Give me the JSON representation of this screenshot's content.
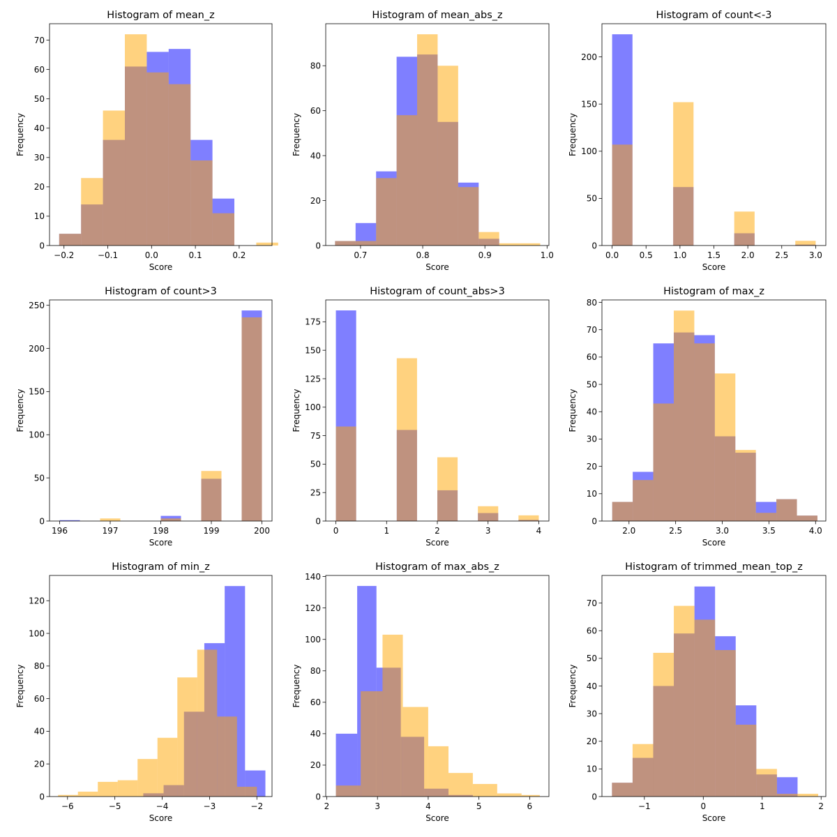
{
  "colors": {
    "blue": "#0000ff",
    "orange": "#ffa500",
    "axis": "#000000"
  },
  "chart_data": [
    {
      "type": "bar",
      "title": "Histogram of mean_z",
      "xlabel": "Score",
      "ylabel": "Frequency",
      "xlim": [
        -0.233,
        0.275
      ],
      "ylim": [
        0,
        75.6
      ],
      "xticks": [
        -0.2,
        -0.1,
        0.0,
        0.1,
        0.2
      ],
      "xticklabels": [
        "−0.2",
        "−0.1",
        "0.0",
        "0.1",
        "0.2"
      ],
      "yticks": [
        0,
        10,
        20,
        30,
        40,
        50,
        60,
        70
      ],
      "yticklabels": [
        "0",
        "10",
        "20",
        "30",
        "40",
        "50",
        "60",
        "70"
      ],
      "series": [
        {
          "name": "blue",
          "color": "#0000ff",
          "bins": [
            [
              -0.211,
              -0.161,
              4
            ],
            [
              -0.161,
              -0.111,
              14
            ],
            [
              -0.111,
              -0.061,
              36
            ],
            [
              -0.061,
              -0.011,
              61
            ],
            [
              -0.011,
              0.039,
              66
            ],
            [
              0.039,
              0.089,
              67
            ],
            [
              0.089,
              0.139,
              36
            ],
            [
              0.139,
              0.189,
              16
            ]
          ]
        },
        {
          "name": "orange",
          "color": "#ffa500",
          "bins": [
            [
              -0.211,
              -0.161,
              4
            ],
            [
              -0.161,
              -0.111,
              23
            ],
            [
              -0.111,
              -0.061,
              46
            ],
            [
              -0.061,
              -0.011,
              72
            ],
            [
              -0.011,
              0.039,
              59
            ],
            [
              0.039,
              0.089,
              55
            ],
            [
              0.089,
              0.139,
              29
            ],
            [
              0.139,
              0.189,
              11
            ],
            [
              0.189,
              0.239,
              0
            ],
            [
              0.239,
              0.289,
              1
            ]
          ]
        }
      ]
    },
    {
      "type": "bar",
      "title": "Histogram of mean_abs_z",
      "xlabel": "Score",
      "ylabel": "Frequency",
      "xlim": [
        0.644,
        1.003
      ],
      "ylim": [
        0,
        98.7
      ],
      "xticks": [
        0.7,
        0.8,
        0.9,
        1.0
      ],
      "xticklabels": [
        "0.7",
        "0.8",
        "0.9",
        "1.0"
      ],
      "yticks": [
        0,
        20,
        40,
        60,
        80
      ],
      "yticklabels": [
        "0",
        "20",
        "40",
        "60",
        "80"
      ],
      "series": [
        {
          "name": "blue",
          "color": "#0000ff",
          "bins": [
            [
              0.659,
              0.692,
              2
            ],
            [
              0.692,
              0.725,
              10
            ],
            [
              0.725,
              0.758,
              33
            ],
            [
              0.758,
              0.791,
              84
            ],
            [
              0.791,
              0.824,
              85
            ],
            [
              0.824,
              0.857,
              55
            ],
            [
              0.857,
              0.89,
              28
            ],
            [
              0.89,
              0.923,
              3
            ]
          ]
        },
        {
          "name": "orange",
          "color": "#ffa500",
          "bins": [
            [
              0.659,
              0.692,
              2
            ],
            [
              0.692,
              0.725,
              2
            ],
            [
              0.725,
              0.758,
              30
            ],
            [
              0.758,
              0.791,
              58
            ],
            [
              0.791,
              0.824,
              94
            ],
            [
              0.824,
              0.857,
              80
            ],
            [
              0.857,
              0.89,
              26
            ],
            [
              0.89,
              0.923,
              6
            ],
            [
              0.923,
              0.956,
              1
            ],
            [
              0.956,
              0.989,
              1
            ]
          ]
        }
      ]
    },
    {
      "type": "bar",
      "title": "Histogram of count<-3",
      "xlabel": "Score",
      "ylabel": "Frequency",
      "xlim": [
        -0.15,
        3.15
      ],
      "ylim": [
        0,
        235.2
      ],
      "xticks": [
        0.0,
        0.5,
        1.0,
        1.5,
        2.0,
        2.5,
        3.0
      ],
      "xticklabels": [
        "0.0",
        "0.5",
        "1.0",
        "1.5",
        "2.0",
        "2.5",
        "3.0"
      ],
      "yticks": [
        0,
        50,
        100,
        150,
        200
      ],
      "yticklabels": [
        "0",
        "50",
        "100",
        "150",
        "200"
      ],
      "series": [
        {
          "name": "blue",
          "color": "#0000ff",
          "bins": [
            [
              0.0,
              0.3,
              224
            ],
            [
              0.9,
              1.2,
              62
            ],
            [
              1.8,
              2.1,
              13
            ],
            [
              2.7,
              3.0,
              1
            ]
          ]
        },
        {
          "name": "orange",
          "color": "#ffa500",
          "bins": [
            [
              0.0,
              0.3,
              107
            ],
            [
              0.9,
              1.2,
              152
            ],
            [
              1.8,
              2.1,
              36
            ],
            [
              2.7,
              3.0,
              5
            ]
          ]
        }
      ]
    },
    {
      "type": "bar",
      "title": "Histogram of count>3",
      "xlabel": "Score",
      "ylabel": "Frequency",
      "xlim": [
        195.8,
        200.2
      ],
      "ylim": [
        0,
        256.2
      ],
      "xticks": [
        196,
        197,
        198,
        199,
        200
      ],
      "xticklabels": [
        "196",
        "197",
        "198",
        "199",
        "200"
      ],
      "yticks": [
        0,
        50,
        100,
        150,
        200,
        250
      ],
      "yticklabels": [
        "0",
        "50",
        "100",
        "150",
        "200",
        "250"
      ],
      "series": [
        {
          "name": "blue",
          "color": "#0000ff",
          "bins": [
            [
              196.0,
              196.4,
              1
            ],
            [
              198.0,
              198.4,
              6
            ],
            [
              198.8,
              199.2,
              49
            ],
            [
              199.6,
              200.0,
              244
            ]
          ]
        },
        {
          "name": "orange",
          "color": "#ffa500",
          "bins": [
            [
              196.8,
              197.2,
              3
            ],
            [
              198.0,
              198.4,
              3
            ],
            [
              198.8,
              199.2,
              58
            ],
            [
              199.6,
              200.0,
              236
            ]
          ]
        }
      ]
    },
    {
      "type": "bar",
      "title": "Histogram of count_abs>3",
      "xlabel": "Score",
      "ylabel": "Frequency",
      "xlim": [
        -0.2,
        4.2
      ],
      "ylim": [
        0,
        194.2
      ],
      "xticks": [
        0,
        1,
        2,
        3,
        4
      ],
      "xticklabels": [
        "0",
        "1",
        "2",
        "3",
        "4"
      ],
      "yticks": [
        0,
        25,
        50,
        75,
        100,
        125,
        150,
        175
      ],
      "yticklabels": [
        "0",
        "25",
        "50",
        "75",
        "100",
        "125",
        "150",
        "175"
      ],
      "series": [
        {
          "name": "blue",
          "color": "#0000ff",
          "bins": [
            [
              0.0,
              0.4,
              185
            ],
            [
              1.2,
              1.6,
              80
            ],
            [
              2.0,
              2.4,
              27
            ],
            [
              2.8,
              3.2,
              7
            ],
            [
              3.6,
              4.0,
              1
            ]
          ]
        },
        {
          "name": "orange",
          "color": "#ffa500",
          "bins": [
            [
              0.0,
              0.4,
              83
            ],
            [
              1.2,
              1.6,
              143
            ],
            [
              2.0,
              2.4,
              56
            ],
            [
              2.8,
              3.2,
              13
            ],
            [
              3.6,
              4.0,
              5
            ]
          ]
        }
      ]
    },
    {
      "type": "bar",
      "title": "Histogram of max_z",
      "xlabel": "Score",
      "ylabel": "Frequency",
      "xlim": [
        1.71,
        4.11
      ],
      "ylim": [
        0,
        80.9
      ],
      "xticks": [
        2.0,
        2.5,
        3.0,
        3.5,
        4.0
      ],
      "xticklabels": [
        "2.0",
        "2.5",
        "3.0",
        "3.5",
        "4.0"
      ],
      "yticks": [
        0,
        10,
        20,
        30,
        40,
        50,
        60,
        70,
        80
      ],
      "yticklabels": [
        "0",
        "10",
        "20",
        "30",
        "40",
        "50",
        "60",
        "70",
        "80"
      ],
      "series": [
        {
          "name": "blue",
          "color": "#0000ff",
          "bins": [
            [
              1.82,
              2.04,
              7
            ],
            [
              2.04,
              2.26,
              18
            ],
            [
              2.26,
              2.48,
              65
            ],
            [
              2.48,
              2.7,
              69
            ],
            [
              2.7,
              2.92,
              68
            ],
            [
              2.92,
              3.14,
              31
            ],
            [
              3.14,
              3.36,
              25
            ],
            [
              3.36,
              3.58,
              7
            ],
            [
              3.58,
              3.8,
              8
            ],
            [
              3.8,
              4.02,
              2
            ]
          ]
        },
        {
          "name": "orange",
          "color": "#ffa500",
          "bins": [
            [
              1.82,
              2.04,
              7
            ],
            [
              2.04,
              2.26,
              15
            ],
            [
              2.26,
              2.48,
              43
            ],
            [
              2.48,
              2.7,
              77
            ],
            [
              2.7,
              2.92,
              65
            ],
            [
              2.92,
              3.14,
              54
            ],
            [
              3.14,
              3.36,
              26
            ],
            [
              3.36,
              3.58,
              3
            ],
            [
              3.58,
              3.8,
              8
            ],
            [
              3.8,
              4.02,
              2
            ]
          ]
        }
      ]
    },
    {
      "type": "bar",
      "title": "Histogram of min_z",
      "xlabel": "Score",
      "ylabel": "Frequency",
      "xlim": [
        -6.38,
        -1.68
      ],
      "ylim": [
        0,
        135.5
      ],
      "xticks": [
        -6,
        -5,
        -4,
        -3,
        -2
      ],
      "xticklabels": [
        "−6",
        "−5",
        "−4",
        "−3",
        "−2"
      ],
      "yticks": [
        0,
        20,
        40,
        60,
        80,
        100,
        120
      ],
      "yticklabels": [
        "0",
        "20",
        "40",
        "60",
        "80",
        "100",
        "120"
      ],
      "series": [
        {
          "name": "blue",
          "color": "#0000ff",
          "bins": [
            [
              -4.4,
              -3.97,
              2
            ],
            [
              -3.97,
              -3.54,
              7
            ],
            [
              -3.54,
              -3.11,
              52
            ],
            [
              -3.11,
              -2.68,
              94
            ],
            [
              -2.68,
              -2.25,
              129
            ],
            [
              -2.25,
              -1.82,
              16
            ]
          ]
        },
        {
          "name": "orange",
          "color": "#ffa500",
          "bins": [
            [
              -6.2,
              -5.78,
              1
            ],
            [
              -5.78,
              -5.36,
              3
            ],
            [
              -5.36,
              -4.94,
              9
            ],
            [
              -4.94,
              -4.52,
              10
            ],
            [
              -4.52,
              -4.1,
              23
            ],
            [
              -4.1,
              -3.68,
              36
            ],
            [
              -3.68,
              -3.26,
              73
            ],
            [
              -3.26,
              -2.84,
              90
            ],
            [
              -2.84,
              -2.42,
              49
            ],
            [
              -2.42,
              -2.0,
              6
            ]
          ]
        }
      ]
    },
    {
      "type": "bar",
      "title": "Histogram of max_abs_z",
      "xlabel": "Score",
      "ylabel": "Frequency",
      "xlim": [
        1.98,
        6.38
      ],
      "ylim": [
        0,
        140.7
      ],
      "xticks": [
        2,
        3,
        4,
        5,
        6
      ],
      "xticklabels": [
        "2",
        "3",
        "4",
        "5",
        "6"
      ],
      "yticks": [
        0,
        20,
        40,
        60,
        80,
        100,
        120,
        140
      ],
      "yticklabels": [
        "0",
        "20",
        "40",
        "60",
        "80",
        "100",
        "120",
        "140"
      ],
      "series": [
        {
          "name": "blue",
          "color": "#0000ff",
          "bins": [
            [
              2.18,
              2.6,
              40
            ],
            [
              2.6,
              2.98,
              134
            ],
            [
              2.98,
              3.46,
              82
            ],
            [
              3.46,
              3.92,
              38
            ],
            [
              3.92,
              4.4,
              5
            ],
            [
              4.4,
              4.88,
              1
            ]
          ]
        },
        {
          "name": "orange",
          "color": "#ffa500",
          "bins": [
            [
              2.18,
              2.67,
              7
            ],
            [
              2.67,
              3.1,
              67
            ],
            [
              3.1,
              3.5,
              103
            ],
            [
              3.5,
              4.0,
              57
            ],
            [
              4.0,
              4.4,
              32
            ],
            [
              4.4,
              4.88,
              15
            ],
            [
              4.88,
              5.36,
              8
            ],
            [
              5.36,
              5.84,
              2
            ],
            [
              5.84,
              6.2,
              1
            ]
          ]
        }
      ]
    },
    {
      "type": "bar",
      "title": "Histogram of trimmed_mean_top_z",
      "xlabel": "Score",
      "ylabel": "Frequency",
      "xlim": [
        -1.72,
        2.08
      ],
      "ylim": [
        0,
        80
      ],
      "xticks": [
        -1,
        0,
        1,
        2
      ],
      "xticklabels": [
        "−1",
        "0",
        "1",
        "2"
      ],
      "yticks": [
        0,
        10,
        20,
        30,
        40,
        50,
        60,
        70
      ],
      "yticklabels": [
        "0",
        "10",
        "20",
        "30",
        "40",
        "50",
        "60",
        "70"
      ],
      "series": [
        {
          "name": "blue",
          "color": "#0000ff",
          "bins": [
            [
              -1.55,
              -1.2,
              5
            ],
            [
              -1.2,
              -0.85,
              14
            ],
            [
              -0.85,
              -0.5,
              40
            ],
            [
              -0.5,
              -0.15,
              59
            ],
            [
              -0.15,
              0.2,
              76
            ],
            [
              0.2,
              0.55,
              58
            ],
            [
              0.55,
              0.9,
              33
            ],
            [
              0.9,
              1.25,
              8
            ],
            [
              1.25,
              1.6,
              7
            ]
          ]
        },
        {
          "name": "orange",
          "color": "#ffa500",
          "bins": [
            [
              -1.55,
              -1.2,
              5
            ],
            [
              -1.2,
              -0.85,
              19
            ],
            [
              -0.85,
              -0.5,
              52
            ],
            [
              -0.5,
              -0.15,
              69
            ],
            [
              -0.15,
              0.2,
              64
            ],
            [
              0.2,
              0.55,
              53
            ],
            [
              0.55,
              0.9,
              26
            ],
            [
              0.9,
              1.25,
              10
            ],
            [
              1.25,
              1.6,
              1
            ],
            [
              1.6,
              1.95,
              1
            ]
          ]
        }
      ]
    }
  ]
}
